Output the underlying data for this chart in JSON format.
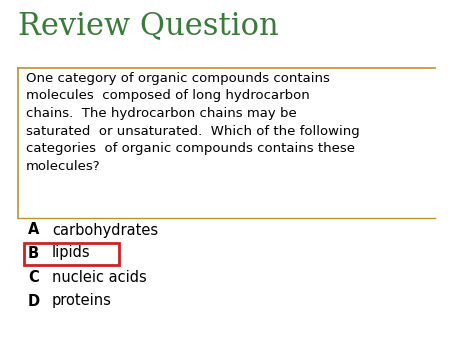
{
  "title": "Review Question",
  "title_color": "#3a7a3a",
  "background_color": "#ffffff",
  "question_text": "One category of organic compounds contains\nmolecules  composed of long hydrocarbon\nchains.  The hydrocarbon chains may be\nsaturated  or unsaturated.  Which of the following\ncategories  of organic compounds contains these\nmolecules?",
  "options": [
    {
      "letter": "A",
      "text": "carbohydrates",
      "correct": false
    },
    {
      "letter": "B",
      "text": "lipids",
      "correct": true
    },
    {
      "letter": "C",
      "text": "nucleic acids",
      "correct": false
    },
    {
      "letter": "D",
      "text": "proteins",
      "correct": false
    }
  ],
  "box_border_color": "#b8962a",
  "correct_box_color": "#cc2222",
  "text_color": "#000000",
  "divider_color": "#b8962a",
  "title_fontsize": 22,
  "question_fontsize": 9.5,
  "option_fontsize": 10.5
}
